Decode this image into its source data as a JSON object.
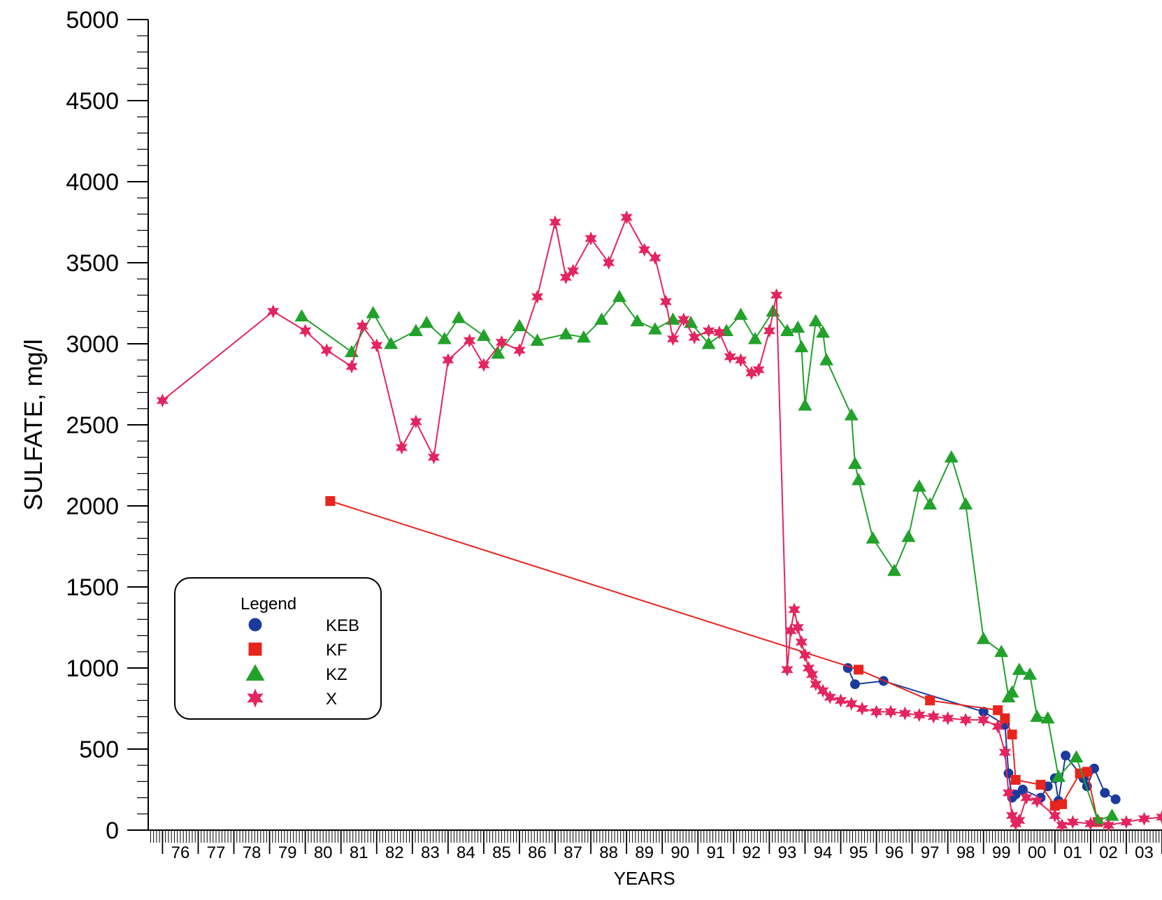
{
  "chart_data": {
    "type": "line",
    "title": "",
    "xlabel": "YEARS",
    "ylabel": "SULFATE, mg/l",
    "ylim": [
      0,
      5000
    ],
    "xlim": [
      1975.6,
      2004.0
    ],
    "yticks": [
      0,
      500,
      1000,
      1500,
      2000,
      2500,
      3000,
      3500,
      4000,
      4500,
      5000
    ],
    "xtick_labels": [
      "76",
      "77",
      "78",
      "79",
      "80",
      "81",
      "82",
      "83",
      "84",
      "85",
      "86",
      "87",
      "88",
      "89",
      "90",
      "91",
      "92",
      "93",
      "94",
      "95",
      "96",
      "97",
      "98",
      "99",
      "00",
      "01",
      "02",
      "03"
    ],
    "xtick_years": [
      1976,
      1977,
      1978,
      1979,
      1980,
      1981,
      1982,
      1983,
      1984,
      1985,
      1986,
      1987,
      1988,
      1989,
      1990,
      1991,
      1992,
      1993,
      1994,
      1995,
      1996,
      1997,
      1998,
      1999,
      2000,
      2001,
      2002,
      2003
    ],
    "legend": {
      "title": "Legend",
      "placement": "lower-left"
    },
    "series": [
      {
        "name": "KEB",
        "color": "#1a3b9c",
        "marker": "circle",
        "x": [
          1995.2,
          1995.4,
          1996.2,
          1999.0,
          1999.6,
          1999.7,
          1999.8,
          1999.9,
          2000.1,
          2000.6,
          2000.8,
          2001.0,
          2001.1,
          2001.3,
          2001.8,
          2001.9,
          2002.1,
          2002.4,
          2002.7
        ],
        "y": [
          1000,
          900,
          920,
          730,
          650,
          350,
          200,
          220,
          250,
          200,
          270,
          320,
          180,
          460,
          320,
          270,
          380,
          230,
          190
        ]
      },
      {
        "name": "KF",
        "color": "#e8241e",
        "marker": "square",
        "x": [
          1980.7,
          1995.5,
          1997.5,
          1999.4,
          1999.6,
          1999.8,
          1999.9,
          2000.6,
          2001.0,
          2001.2,
          2001.7,
          2001.9,
          2002.2
        ],
        "y": [
          2030,
          990,
          800,
          740,
          690,
          590,
          310,
          280,
          150,
          160,
          350,
          360,
          50
        ]
      },
      {
        "name": "KZ",
        "color": "#22a12b",
        "marker": "triangle",
        "x": [
          1979.9,
          1981.3,
          1981.9,
          1982.4,
          1983.1,
          1983.4,
          1983.9,
          1984.3,
          1985.0,
          1985.4,
          1986.0,
          1986.5,
          1987.3,
          1987.8,
          1988.3,
          1988.8,
          1989.3,
          1989.8,
          1990.3,
          1990.8,
          1991.3,
          1991.8,
          1992.2,
          1992.6,
          1993.1,
          1993.5,
          1993.8,
          1993.9,
          1994.0,
          1994.3,
          1994.5,
          1994.6,
          1995.3,
          1995.4,
          1995.5,
          1995.9,
          1996.5,
          1996.9,
          1997.2,
          1997.5,
          1998.1,
          1998.5,
          1999.0,
          1999.5,
          1999.7,
          1999.8,
          2000.0,
          2000.3,
          2000.5,
          2000.8,
          2001.1,
          2001.6,
          2002.2,
          2002.6
        ],
        "y": [
          3170,
          2950,
          3190,
          3000,
          3080,
          3130,
          3030,
          3160,
          3050,
          2940,
          3110,
          3020,
          3060,
          3040,
          3150,
          3290,
          3140,
          3090,
          3150,
          3130,
          3000,
          3080,
          3180,
          3030,
          3200,
          3080,
          3100,
          2980,
          2620,
          3140,
          3070,
          2900,
          2560,
          2260,
          2160,
          1800,
          1600,
          1810,
          2120,
          2010,
          2300,
          2010,
          1180,
          1100,
          820,
          850,
          990,
          960,
          700,
          690,
          330,
          450,
          60,
          90
        ]
      },
      {
        "name": "X",
        "color": "#e4245f",
        "marker": "star",
        "x": [
          1976.0,
          1979.1,
          1980.0,
          1980.6,
          1981.3,
          1981.6,
          1982.0,
          1982.7,
          1983.1,
          1983.6,
          1984.0,
          1984.6,
          1985.0,
          1985.5,
          1986.0,
          1986.5,
          1987.0,
          1987.3,
          1987.5,
          1988.0,
          1988.5,
          1989.0,
          1989.5,
          1989.8,
          1990.1,
          1990.3,
          1990.6,
          1990.9,
          1991.3,
          1991.6,
          1991.9,
          1992.2,
          1992.5,
          1992.7,
          1993.0,
          1993.2,
          1993.5,
          1993.6,
          1993.7,
          1993.8,
          1993.9,
          1994.0,
          1994.1,
          1994.2,
          1994.3,
          1994.5,
          1994.7,
          1995.0,
          1995.3,
          1995.6,
          1996.0,
          1996.4,
          1996.8,
          1997.2,
          1997.6,
          1998.0,
          1998.5,
          1999.0,
          1999.4,
          1999.6,
          1999.7,
          1999.8,
          1999.9,
          2000.0,
          2000.2,
          2000.5,
          2001.0,
          2001.2,
          2001.5,
          2002.0,
          2002.5,
          2003.0,
          2003.5,
          2004.0
        ],
        "y": [
          2650,
          3200,
          3080,
          2960,
          2860,
          3110,
          2990,
          2360,
          2520,
          2300,
          2900,
          3020,
          2870,
          3010,
          2960,
          3290,
          3750,
          3410,
          3450,
          3650,
          3500,
          3780,
          3580,
          3530,
          3260,
          3030,
          3150,
          3040,
          3080,
          3070,
          2920,
          2900,
          2820,
          2840,
          3080,
          3300,
          990,
          1230,
          1360,
          1250,
          1160,
          1080,
          1000,
          960,
          900,
          860,
          820,
          800,
          780,
          750,
          730,
          730,
          720,
          710,
          700,
          690,
          680,
          680,
          640,
          480,
          230,
          90,
          40,
          60,
          200,
          180,
          90,
          30,
          50,
          40,
          30,
          50,
          70,
          80
        ]
      }
    ]
  }
}
